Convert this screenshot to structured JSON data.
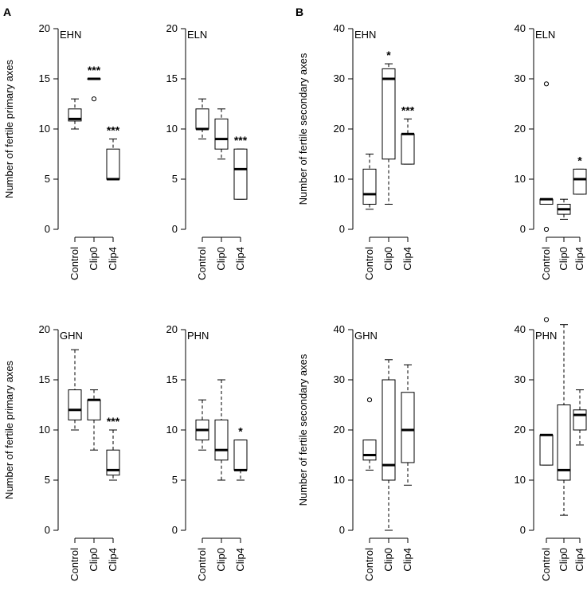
{
  "panel_labels": [
    "A",
    "B"
  ],
  "chart_data": [
    {
      "type": "boxplot",
      "panel": "A",
      "title": "EHN",
      "ylabel": "Number of fertile primary axes",
      "ylim": [
        0,
        20
      ],
      "yticks": [
        0,
        5,
        10,
        15,
        20
      ],
      "categories": [
        "Control",
        "Clip0",
        "Clip4"
      ],
      "boxes": [
        {
          "whisker_low": 10,
          "q1": 10.8,
          "median": 11,
          "q3": 12,
          "whisker_high": 13,
          "outliers": [],
          "sig": ""
        },
        {
          "whisker_low": 15,
          "q1": 15,
          "median": 15,
          "q3": 15,
          "whisker_high": 15,
          "outliers": [
            13
          ],
          "sig": "***"
        },
        {
          "whisker_low": 5,
          "q1": 5,
          "median": 5,
          "q3": 8,
          "whisker_high": 9,
          "outliers": [],
          "sig": "***"
        }
      ]
    },
    {
      "type": "boxplot",
      "panel": "A",
      "title": "ELN",
      "ylabel": "",
      "ylim": [
        0,
        20
      ],
      "yticks": [
        0,
        5,
        10,
        15,
        20
      ],
      "categories": [
        "Control",
        "Clip0",
        "Clip4"
      ],
      "boxes": [
        {
          "whisker_low": 9,
          "q1": 10,
          "median": 10,
          "q3": 12,
          "whisker_high": 13,
          "outliers": [],
          "sig": ""
        },
        {
          "whisker_low": 7,
          "q1": 8,
          "median": 9,
          "q3": 11,
          "whisker_high": 12,
          "outliers": [],
          "sig": ""
        },
        {
          "whisker_low": 3,
          "q1": 3,
          "median": 6,
          "q3": 8,
          "whisker_high": 8,
          "outliers": [],
          "sig": "***"
        }
      ]
    },
    {
      "type": "boxplot",
      "panel": "B",
      "title": "EHN",
      "ylabel": "Number of fertile secondary axes",
      "ylim": [
        0,
        40
      ],
      "yticks": [
        0,
        10,
        20,
        30,
        40
      ],
      "categories": [
        "Control",
        "Clip0",
        "Clip4"
      ],
      "boxes": [
        {
          "whisker_low": 4,
          "q1": 5,
          "median": 7,
          "q3": 12,
          "whisker_high": 15,
          "outliers": [],
          "sig": ""
        },
        {
          "whisker_low": 5,
          "q1": 14,
          "median": 30,
          "q3": 32,
          "whisker_high": 33,
          "outliers": [],
          "sig": "*"
        },
        {
          "whisker_low": 13,
          "q1": 13,
          "median": 19,
          "q3": 19,
          "whisker_high": 22,
          "outliers": [],
          "sig": "***"
        }
      ]
    },
    {
      "type": "boxplot",
      "panel": "B",
      "title": "ELN",
      "ylabel": "",
      "ylim": [
        0,
        40
      ],
      "yticks": [
        0,
        10,
        20,
        30,
        40
      ],
      "categories": [
        "Control",
        "Clip0",
        "Clip4"
      ],
      "boxes": [
        {
          "whisker_low": 5,
          "q1": 5,
          "median": 6,
          "q3": 6,
          "whisker_high": 6,
          "outliers": [
            29,
            0
          ],
          "sig": ""
        },
        {
          "whisker_low": 2,
          "q1": 3,
          "median": 4,
          "q3": 5,
          "whisker_high": 6,
          "outliers": [],
          "sig": ""
        },
        {
          "whisker_low": 7,
          "q1": 7,
          "median": 10,
          "q3": 12,
          "whisker_high": 12,
          "outliers": [],
          "sig": "*"
        }
      ]
    },
    {
      "type": "boxplot",
      "panel": "A",
      "title": "GHN",
      "ylabel": "Number of fertile primary axes",
      "ylim": [
        0,
        20
      ],
      "yticks": [
        0,
        5,
        10,
        15,
        20
      ],
      "categories": [
        "Control",
        "Clip0",
        "Clip4"
      ],
      "boxes": [
        {
          "whisker_low": 10,
          "q1": 11,
          "median": 12,
          "q3": 14,
          "whisker_high": 18,
          "outliers": [],
          "sig": ""
        },
        {
          "whisker_low": 8,
          "q1": 11,
          "median": 13,
          "q3": 13,
          "whisker_high": 14,
          "outliers": [],
          "sig": ""
        },
        {
          "whisker_low": 5,
          "q1": 5.5,
          "median": 6,
          "q3": 8,
          "whisker_high": 10,
          "outliers": [],
          "sig": "***"
        }
      ]
    },
    {
      "type": "boxplot",
      "panel": "A",
      "title": "PHN",
      "ylabel": "",
      "ylim": [
        0,
        20
      ],
      "yticks": [
        0,
        5,
        10,
        15,
        20
      ],
      "categories": [
        "Control",
        "Clip0",
        "Clip4"
      ],
      "boxes": [
        {
          "whisker_low": 8,
          "q1": 9,
          "median": 10,
          "q3": 11,
          "whisker_high": 13,
          "outliers": [],
          "sig": ""
        },
        {
          "whisker_low": 5,
          "q1": 7,
          "median": 8,
          "q3": 11,
          "whisker_high": 15,
          "outliers": [],
          "sig": ""
        },
        {
          "whisker_low": 5,
          "q1": 6,
          "median": 6,
          "q3": 9,
          "whisker_high": 9,
          "outliers": [],
          "sig": "*"
        }
      ]
    },
    {
      "type": "boxplot",
      "panel": "B",
      "title": "GHN",
      "ylabel": "Number of fertile secondary axes",
      "ylim": [
        0,
        40
      ],
      "yticks": [
        0,
        10,
        20,
        30,
        40
      ],
      "categories": [
        "Control",
        "Clip0",
        "Clip4"
      ],
      "boxes": [
        {
          "whisker_low": 12,
          "q1": 14,
          "median": 15,
          "q3": 18,
          "whisker_high": 18,
          "outliers": [
            26
          ],
          "sig": ""
        },
        {
          "whisker_low": 0,
          "q1": 10,
          "median": 13,
          "q3": 30,
          "whisker_high": 34,
          "outliers": [],
          "sig": ""
        },
        {
          "whisker_low": 9,
          "q1": 13.5,
          "median": 20,
          "q3": 27.5,
          "whisker_high": 33,
          "outliers": [],
          "sig": ""
        }
      ]
    },
    {
      "type": "boxplot",
      "panel": "B",
      "title": "PHN",
      "ylabel": "",
      "ylim": [
        0,
        40
      ],
      "yticks": [
        0,
        10,
        20,
        30,
        40
      ],
      "categories": [
        "Control",
        "Clip0",
        "Clip4"
      ],
      "boxes": [
        {
          "whisker_low": 13,
          "q1": 13,
          "median": 19,
          "q3": 19,
          "whisker_high": 19,
          "outliers": [
            42
          ],
          "sig": ""
        },
        {
          "whisker_low": 3,
          "q1": 10,
          "median": 12,
          "q3": 25,
          "whisker_high": 41,
          "outliers": [],
          "sig": ""
        },
        {
          "whisker_low": 17,
          "q1": 20,
          "median": 23,
          "q3": 24,
          "whisker_high": 28,
          "outliers": [],
          "sig": ""
        }
      ]
    }
  ]
}
